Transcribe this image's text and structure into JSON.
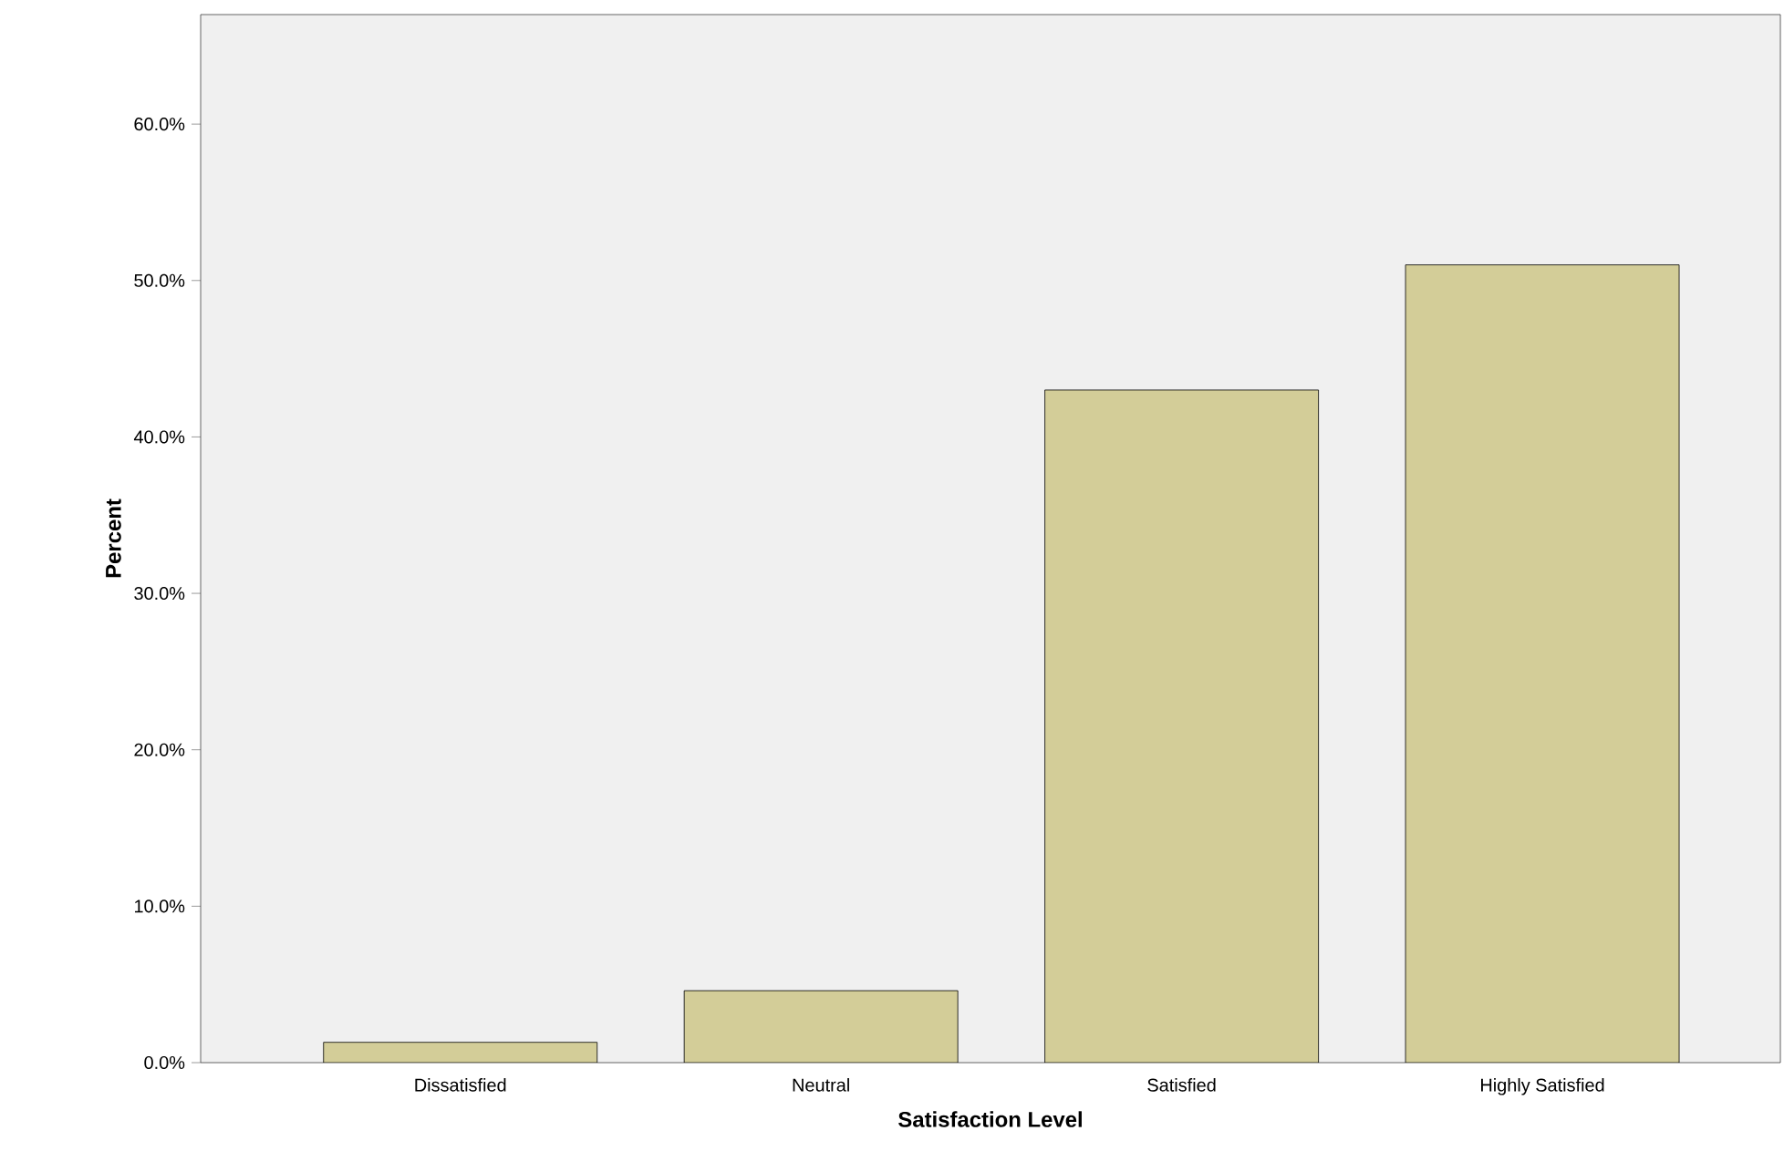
{
  "chart_data": {
    "type": "bar",
    "xlabel": "Satisfaction Level",
    "ylabel": "Percent",
    "categories": [
      "Dissatisfied",
      "Neutral",
      "Satisfied",
      "Highly Satisfied"
    ],
    "values": [
      1.3,
      4.6,
      43.0,
      51.0
    ],
    "color": "#d3cd98",
    "ylim": [
      0,
      67
    ],
    "yticks": [
      {
        "value": 0,
        "label": "0.0%"
      },
      {
        "value": 10,
        "label": "10.0%"
      },
      {
        "value": 20,
        "label": "20.0%"
      },
      {
        "value": 30,
        "label": "30.0%"
      },
      {
        "value": 40,
        "label": "40.0%"
      },
      {
        "value": 50,
        "label": "50.0%"
      },
      {
        "value": 60,
        "label": "60.0%"
      }
    ]
  }
}
